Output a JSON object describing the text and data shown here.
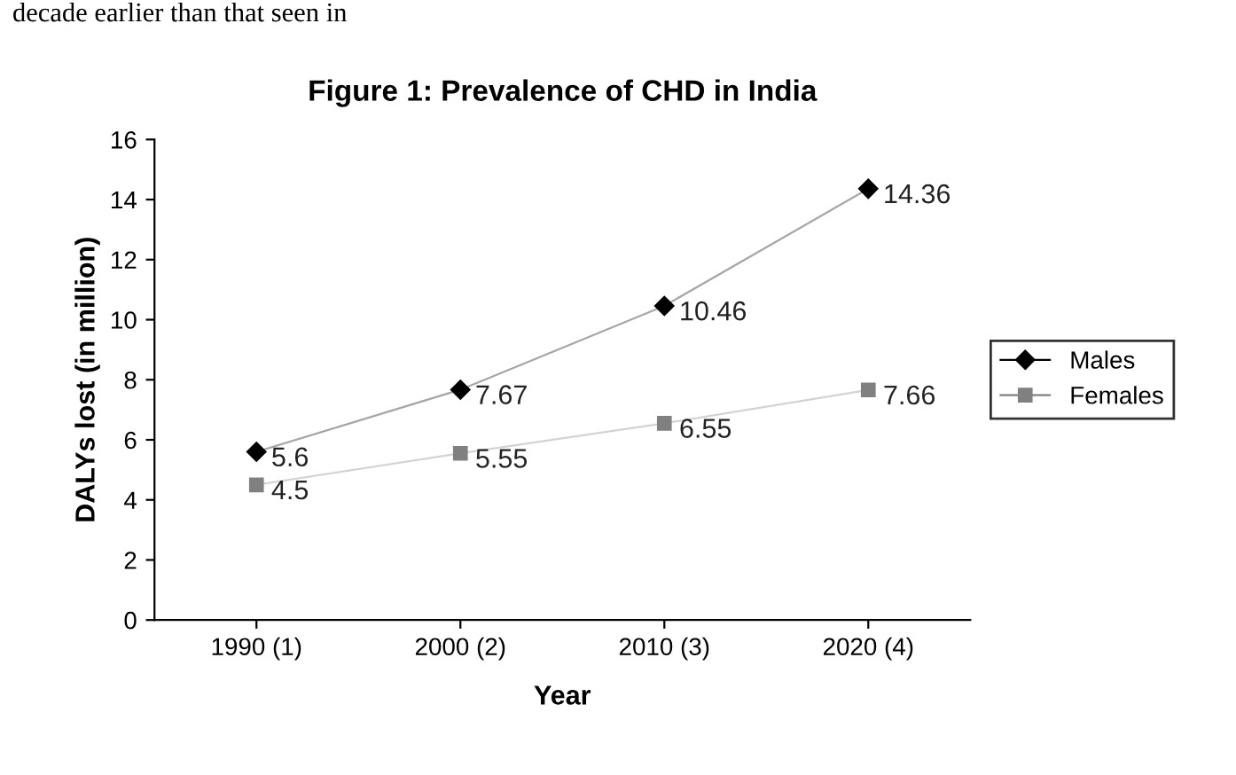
{
  "chart_data": {
    "type": "line",
    "title": "Figure 1: Prevalence of CHD in India",
    "xlabel": "Year",
    "ylabel": "DALYs lost (in million)",
    "annotations": [
      "decade earlier than that seen in"
    ],
    "categories": [
      "1990 (1)",
      "2000 (2)",
      "2010 (3)",
      "2020 (4)"
    ],
    "series": [
      {
        "name": "Males",
        "color": "#000000",
        "marker": "diamond",
        "values": [
          5.6,
          7.67,
          10.46,
          14.36
        ]
      },
      {
        "name": "Females",
        "color": "#808080",
        "marker": "square",
        "values": [
          4.5,
          5.55,
          6.55,
          7.66
        ]
      }
    ],
    "ylim": [
      0,
      16
    ],
    "yticks": [
      0,
      2,
      4,
      6,
      8,
      10,
      12,
      14,
      16
    ],
    "grid": false,
    "legend": "right",
    "data_labels": true
  }
}
